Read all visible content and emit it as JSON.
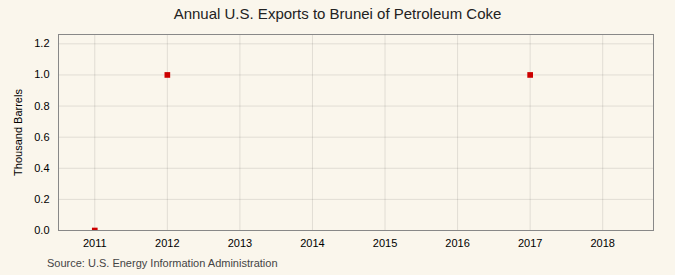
{
  "chart_data": {
    "type": "scatter",
    "title": "Annual U.S. Exports to Brunei of Petroleum Coke",
    "ylabel": "Thousand Barrels",
    "source": "Source: U.S. Energy Information Administration",
    "x": [
      2011,
      2012,
      2017
    ],
    "values": [
      0.0,
      1.0,
      1.0
    ],
    "color": "#cc0000",
    "marker": "square",
    "xlim": [
      2010.5,
      2018.7
    ],
    "ylim": [
      0.0,
      1.26
    ],
    "xticks": [
      2011,
      2012,
      2013,
      2014,
      2015,
      2016,
      2017,
      2018
    ],
    "yticks": [
      {
        "value": 0.0,
        "label": "0.0"
      },
      0.2,
      0.4,
      0.6,
      0.8,
      {
        "value": 1.0,
        "label": "1.0"
      },
      1.2
    ],
    "grid": true
  }
}
